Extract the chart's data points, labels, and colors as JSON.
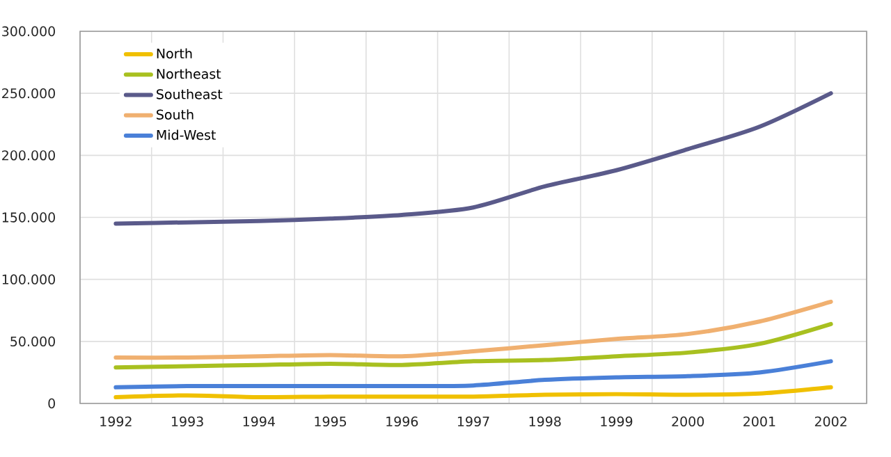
{
  "chart_data": {
    "type": "line",
    "categories": [
      "1992",
      "1993",
      "1994",
      "1995",
      "1996",
      "1997",
      "1998",
      "1999",
      "2000",
      "2001",
      "2002"
    ],
    "series": [
      {
        "name": "North",
        "color": "#f0c000",
        "values": [
          5000,
          6500,
          5000,
          5500,
          5500,
          5500,
          7000,
          7500,
          7000,
          8000,
          13000
        ]
      },
      {
        "name": "Northeast",
        "color": "#a8c020",
        "values": [
          29000,
          30000,
          31000,
          32000,
          31000,
          34000,
          35000,
          38000,
          41000,
          48000,
          64000
        ]
      },
      {
        "name": "Southeast",
        "color": "#5a5a8a",
        "values": [
          145000,
          146000,
          147000,
          149000,
          152000,
          158000,
          175000,
          188000,
          205000,
          223000,
          250000
        ]
      },
      {
        "name": "South",
        "color": "#f0b070",
        "values": [
          37000,
          37000,
          38000,
          39000,
          38000,
          42000,
          47000,
          52000,
          56000,
          66000,
          82000
        ]
      },
      {
        "name": "Mid-West",
        "color": "#4a80d8",
        "values": [
          13000,
          14000,
          14000,
          14000,
          14000,
          14500,
          19000,
          21000,
          22000,
          25000,
          34000
        ]
      }
    ],
    "ylim": [
      0,
      300000
    ],
    "yticks": [
      {
        "value": 0,
        "label": "0"
      },
      {
        "value": 50000,
        "label": "50.000"
      },
      {
        "value": 100000,
        "label": "100.000"
      },
      {
        "value": 150000,
        "label": "150.000"
      },
      {
        "value": 200000,
        "label": "200.000"
      },
      {
        "value": 250000,
        "label": "250.000"
      },
      {
        "value": 300000,
        "label": "300.000"
      }
    ],
    "grid": true,
    "legend": "top left"
  }
}
